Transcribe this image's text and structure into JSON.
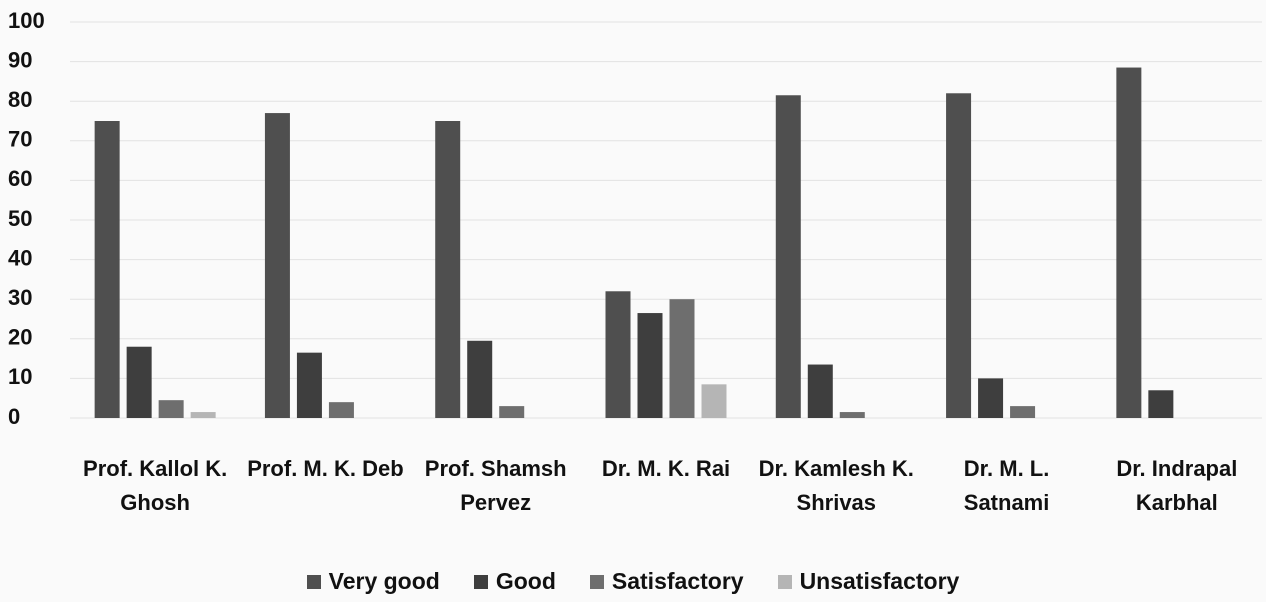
{
  "chart_data": {
    "type": "bar",
    "categories": [
      "Prof. Kallol K. Ghosh",
      "Prof. M. K. Deb",
      "Prof. Shamsh Pervez",
      "Dr. M. K. Rai",
      "Dr. Kamlesh K. Shrivas",
      "Dr. M. L. Satnami",
      "Dr. Indrapal Karbhal"
    ],
    "series": [
      {
        "name": "Very good",
        "color": "#4f4f4f",
        "values": [
          75,
          77,
          75,
          32,
          81.5,
          82,
          88.5
        ]
      },
      {
        "name": "Good",
        "color": "#3e3e3e",
        "values": [
          18,
          16.5,
          19.5,
          26.5,
          13.5,
          10,
          7
        ]
      },
      {
        "name": "Satisfactory",
        "color": "#6e6e6e",
        "values": [
          4.5,
          4,
          3,
          30,
          1.5,
          3,
          0
        ]
      },
      {
        "name": "Unsatisfactory",
        "color": "#b5b5b5",
        "values": [
          1.5,
          0,
          0,
          8.5,
          0,
          0,
          0
        ]
      }
    ],
    "ylim": [
      0,
      100
    ],
    "yticks": [
      0,
      10,
      20,
      30,
      40,
      50,
      60,
      70,
      80,
      90,
      100
    ],
    "grid": true,
    "legend": "bottom"
  }
}
